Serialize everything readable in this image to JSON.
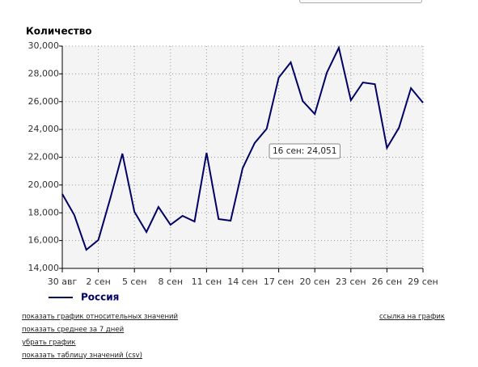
{
  "chart_data": {
    "type": "line",
    "ylabel": "Количество",
    "categories": [
      "30 авг",
      null,
      null,
      "2 сен",
      null,
      null,
      "5 сен",
      null,
      null,
      "8 сен",
      null,
      null,
      "11 сен",
      null,
      null,
      "14 сен",
      null,
      null,
      "17 сен",
      null,
      null,
      "20 сен",
      null,
      null,
      "23 сен",
      null,
      null,
      "26 сен",
      null,
      null,
      "29 сен"
    ],
    "series": [
      {
        "name": "Россия",
        "color": "#000066",
        "values": [
          19350,
          17840,
          15340,
          16040,
          19060,
          22260,
          18070,
          16620,
          18420,
          17140,
          17780,
          17370,
          22320,
          17550,
          17430,
          21210,
          23020,
          24051,
          27730,
          28830,
          26040,
          25110,
          28080,
          29880,
          26100,
          27380,
          27260,
          22670,
          24120,
          26970,
          25920
        ]
      }
    ],
    "ylim": [
      14000,
      30000
    ],
    "yticks": [
      {
        "value": 14000,
        "label": "14,000"
      },
      {
        "value": 16000,
        "label": "16,000"
      },
      {
        "value": 18000,
        "label": "18,000"
      },
      {
        "value": 20000,
        "label": "20,000"
      },
      {
        "value": 22000,
        "label": "22,000"
      },
      {
        "value": 24000,
        "label": "24,000"
      },
      {
        "value": 26000,
        "label": "26,000"
      },
      {
        "value": 28000,
        "label": "28,000"
      },
      {
        "value": 30000,
        "label": "30,000"
      }
    ],
    "grid": true,
    "legend": "bottom",
    "tooltip": "16 сен: 24,051"
  },
  "links": [
    "показать график относительных значений",
    "показать среднее за 7 дней",
    "убрать график",
    "показать таблицу значений (csv)"
  ],
  "right_link": "ссылка на график"
}
